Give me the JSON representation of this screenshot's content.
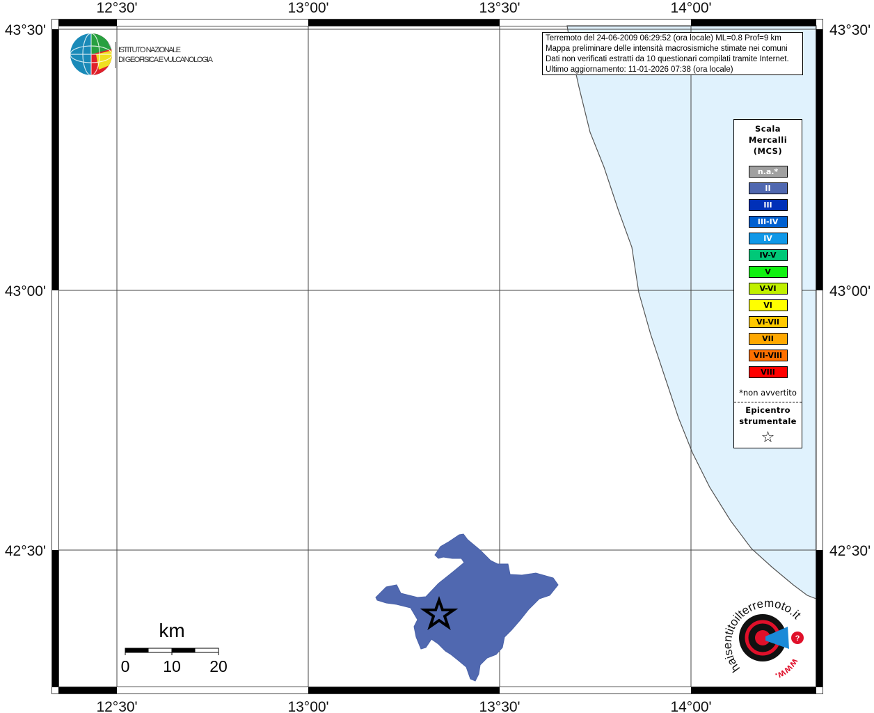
{
  "map": {
    "lon_labels": [
      "12°30'",
      "13°00'",
      "13°30'",
      "14°00'"
    ],
    "lat_labels": [
      "43°30'",
      "43°00'",
      "42°30'"
    ],
    "colors": {
      "sea": "#e0f2fd",
      "region": "#5068b0",
      "coast": "#555555"
    }
  },
  "logo_ingv": {
    "line1": "ISTITUTO NAZIONALE",
    "line2": "DI GEOFISICA E VULCANOLOGIA"
  },
  "info": {
    "line1": "Terremoto del 24-06-2009 06:29:52 (ora locale) ML=0.8 Prof=9 km",
    "line2": "Mappa preliminare delle intensità macrosismiche stimate nei comuni",
    "line3": "Dati non verificati estratti da 10 questionari compilati tramite Internet.",
    "line4": "Ultimo aggiornamento: 11-01-2026 07:38 (ora locale)"
  },
  "legend": {
    "title1": "Scala",
    "title2": "Mercalli",
    "title3": "(MCS)",
    "classes": [
      {
        "label": "n.a.*",
        "color": "#a0a0a0",
        "text": "#ffffff"
      },
      {
        "label": "II",
        "color": "#5068b0",
        "text": "#ffffff"
      },
      {
        "label": "III",
        "color": "#0030b8",
        "text": "#ffffff"
      },
      {
        "label": "III-IV",
        "color": "#0060d0",
        "text": "#ffffff"
      },
      {
        "label": "IV",
        "color": "#1098e8",
        "text": "#ffffff"
      },
      {
        "label": "IV-V",
        "color": "#00c878",
        "text": "#000000"
      },
      {
        "label": "V",
        "color": "#10f010",
        "text": "#000000"
      },
      {
        "label": "V-VI",
        "color": "#c0f000",
        "text": "#000000"
      },
      {
        "label": "VI",
        "color": "#ffff00",
        "text": "#000000"
      },
      {
        "label": "VI-VII",
        "color": "#ffc800",
        "text": "#000000"
      },
      {
        "label": "VII",
        "color": "#ffa800",
        "text": "#000000"
      },
      {
        "label": "VII-VIII",
        "color": "#ff7000",
        "text": "#000000"
      },
      {
        "label": "VIII",
        "color": "#ff0000",
        "text": "#000000"
      }
    ],
    "note": "*non avvertito",
    "epicenter1": "Epicentro",
    "epicenter2": "strumentale",
    "epicenter_symbol": "☆"
  },
  "scale_bar": {
    "unit": "km",
    "labels": [
      "0",
      "10",
      "20"
    ]
  },
  "logo_hst": {
    "text": "haisentitoilterremoto.it",
    "prefix": "www."
  }
}
